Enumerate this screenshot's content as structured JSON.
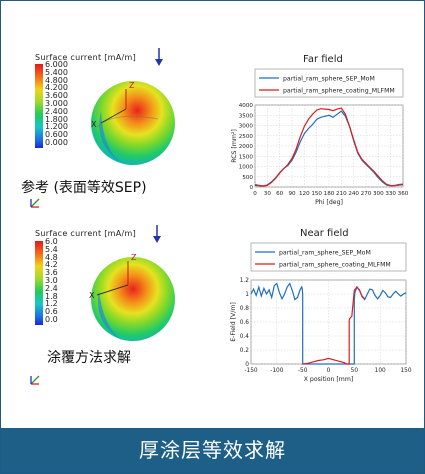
{
  "footer_title": "厚涂层等效求解",
  "top_left": {
    "colorbar_title": "Surface current [mA/m]",
    "ticks": [
      "6.000",
      "5.400",
      "4.800",
      "4.200",
      "3.600",
      "3.000",
      "2.400",
      "1.800",
      "1.200",
      "0.600",
      "0.000"
    ],
    "caption": "参考 (表面等效SEP)",
    "axis_letters": [
      "Z",
      "X"
    ]
  },
  "bottom_left": {
    "colorbar_title": "Surface current [mA/m]",
    "ticks": [
      "6.0",
      "5.4",
      "4.8",
      "4.2",
      "3.6",
      "3.0",
      "2.4",
      "1.8",
      "1.2",
      "0.6",
      "0.0"
    ],
    "caption": "涂覆方法求解",
    "axis_letters": [
      "Z",
      "X"
    ]
  },
  "colors": {
    "series_mom": "#1f6fc0",
    "series_mlfmm": "#d81e1e",
    "footer_bg": "#1d5f86"
  },
  "chart_data": [
    {
      "type": "line",
      "title": "Far field",
      "xlabel": "Phi [deg]",
      "ylabel": "RCS [mm²]",
      "xlim": [
        0,
        360
      ],
      "ylim": [
        0,
        4000
      ],
      "x_ticks": [
        "0",
        "30",
        "60",
        "90",
        "120",
        "150",
        "180",
        "210",
        "240",
        "270",
        "300",
        "330",
        "360"
      ],
      "y_ticks": [
        "4000",
        "3500",
        "3000",
        "2500",
        "2000",
        "1500",
        "1000",
        "500",
        "0"
      ],
      "grid": true,
      "legend": "top",
      "series": [
        {
          "name": "partial_ram_sphere_SEP_MoM",
          "x": [
            0,
            10,
            20,
            30,
            40,
            50,
            60,
            70,
            80,
            90,
            100,
            110,
            120,
            130,
            140,
            150,
            160,
            170,
            180,
            190,
            200,
            210,
            220,
            230,
            240,
            250,
            260,
            270,
            280,
            290,
            300,
            310,
            320,
            330,
            340,
            350,
            360
          ],
          "y": [
            120,
            80,
            60,
            100,
            250,
            450,
            700,
            900,
            1050,
            1300,
            1700,
            2200,
            2600,
            2850,
            3050,
            3300,
            3400,
            3450,
            3500,
            3400,
            3550,
            3700,
            3450,
            2950,
            2250,
            1650,
            1300,
            1100,
            900,
            700,
            450,
            250,
            100,
            60,
            80,
            120,
            140
          ]
        },
        {
          "name": "partial_ram_sphere_coating_MLFMM",
          "x": [
            0,
            10,
            20,
            30,
            40,
            50,
            60,
            70,
            80,
            90,
            100,
            110,
            120,
            130,
            140,
            150,
            160,
            170,
            180,
            190,
            200,
            210,
            220,
            230,
            240,
            250,
            260,
            270,
            280,
            290,
            300,
            310,
            320,
            330,
            340,
            350,
            360
          ],
          "y": [
            80,
            60,
            40,
            80,
            220,
            420,
            680,
            900,
            1100,
            1400,
            1850,
            2450,
            2950,
            3300,
            3550,
            3750,
            3820,
            3800,
            3780,
            3720,
            3800,
            3850,
            3550,
            2950,
            2300,
            1700,
            1350,
            1150,
            950,
            750,
            520,
            300,
            130,
            70,
            70,
            90,
            110
          ]
        }
      ]
    },
    {
      "type": "line",
      "title": "Near field",
      "xlabel": "X position [mm]",
      "ylabel": "E-Field [V/m]",
      "xlim": [
        -150,
        150
      ],
      "ylim": [
        0,
        1.2
      ],
      "x_ticks": [
        "-150",
        "-100",
        "-50",
        "0",
        "50",
        "100",
        "150"
      ],
      "y_ticks": [
        "1.2",
        "1",
        "0.8",
        "0.6",
        "0.4",
        "0.2",
        "0"
      ],
      "grid": true,
      "legend": "top",
      "series": [
        {
          "name": "partial_ram_sphere_SEP_MoM",
          "x": [
            -150,
            -145,
            -140,
            -135,
            -130,
            -125,
            -120,
            -115,
            -110,
            -105,
            -100,
            -95,
            -90,
            -85,
            -80,
            -75,
            -70,
            -65,
            -60,
            -55,
            -52,
            -51,
            -50,
            -50,
            50,
            50,
            51,
            55,
            60,
            65,
            70,
            75,
            80,
            85,
            90,
            95,
            100,
            105,
            110,
            115,
            120,
            125,
            130,
            135,
            140,
            145,
            150
          ],
          "y": [
            1.0,
            1.07,
            0.98,
            1.1,
            0.97,
            1.08,
            1.0,
            1.06,
            0.95,
            1.12,
            1.15,
            1.02,
            0.93,
            1.0,
            1.1,
            1.15,
            1.05,
            0.92,
            0.95,
            1.06,
            1.1,
            1.08,
            1.0,
            0.0,
            0.0,
            0.92,
            1.02,
            1.1,
            1.06,
            0.96,
            0.92,
            1.0,
            1.07,
            1.06,
            0.98,
            0.93,
            0.98,
            1.05,
            1.02,
            0.96,
            0.95,
            1.0,
            1.04,
            1.0,
            0.97,
            1.0,
            1.02
          ]
        },
        {
          "name": "partial_ram_sphere_coating_MLFMM",
          "x": [
            -50,
            -40,
            -30,
            -20,
            -10,
            0,
            10,
            20,
            30,
            35,
            40,
            40,
            41,
            45,
            50,
            55,
            60,
            65,
            70
          ],
          "y": [
            0.0,
            0.01,
            0.03,
            0.05,
            0.06,
            0.08,
            0.06,
            0.04,
            0.02,
            0.0,
            0.0,
            0.62,
            0.65,
            0.68,
            1.05,
            1.1,
            1.05,
            0.97,
            0.93
          ]
        }
      ]
    }
  ]
}
